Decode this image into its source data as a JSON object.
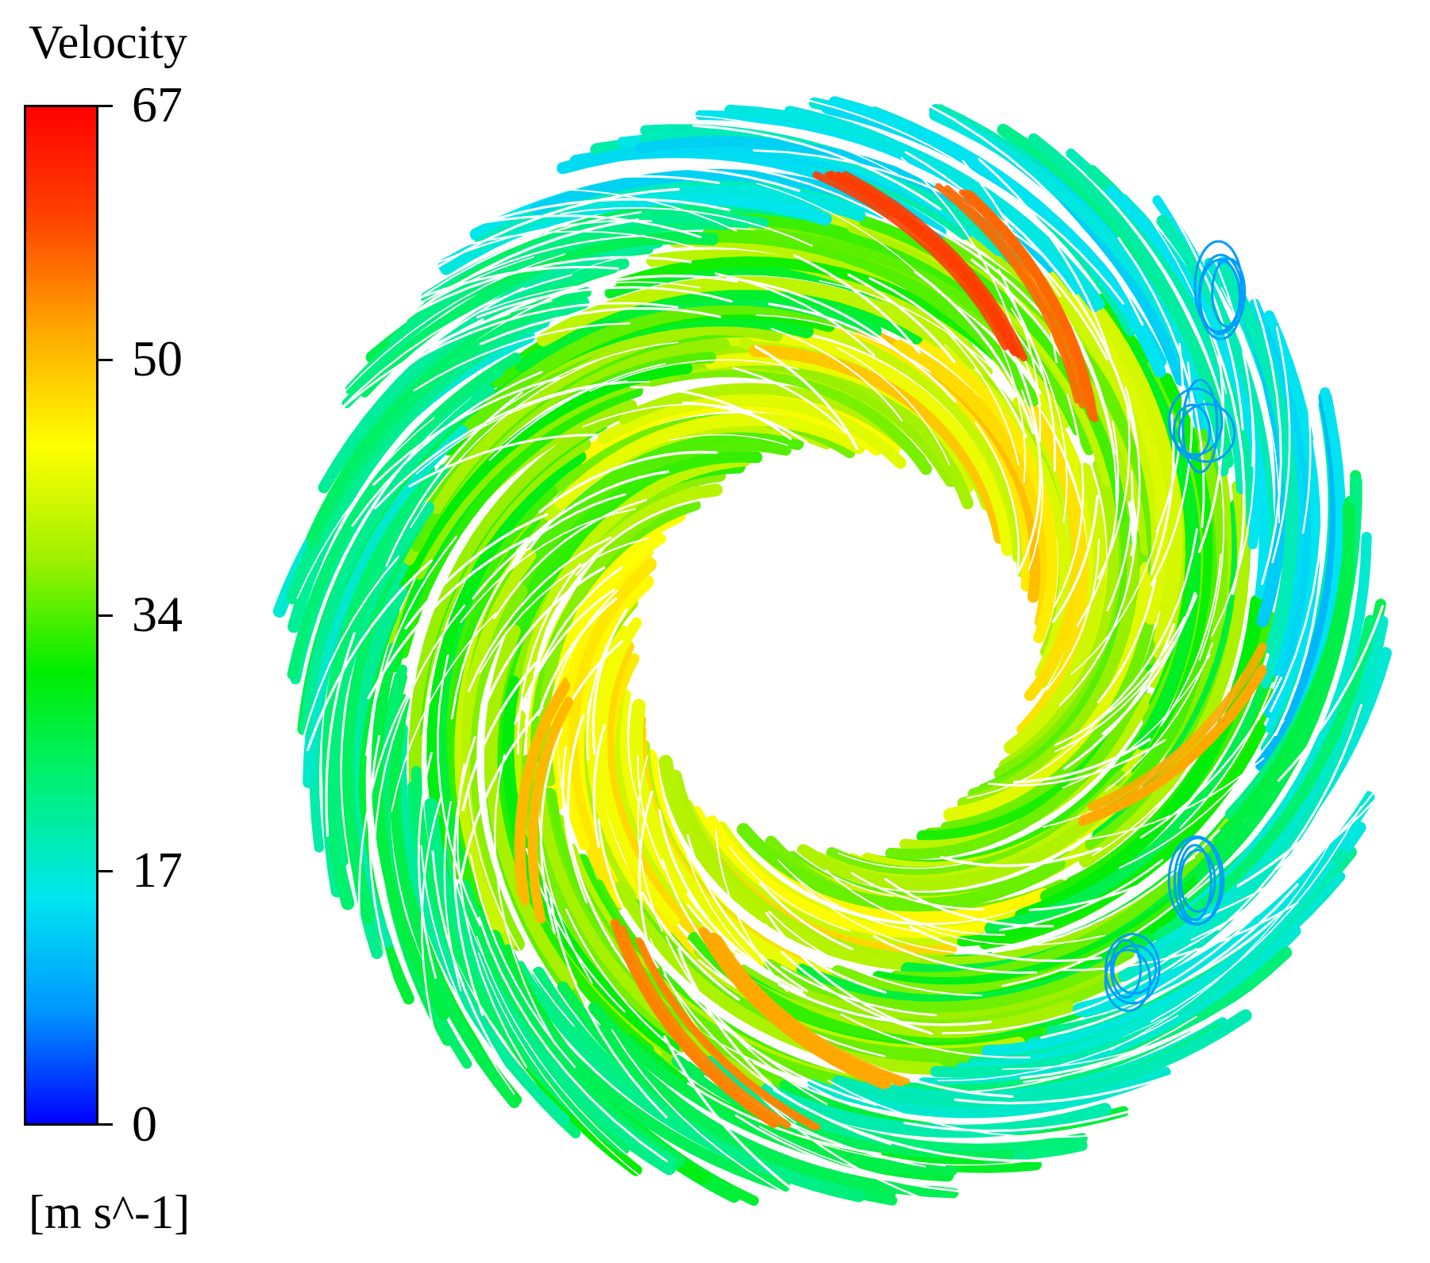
{
  "legend": {
    "title": "Velocity",
    "ticks": [
      "67",
      "50",
      "34",
      "17",
      "0"
    ],
    "unit": "[m s^-1]",
    "colormap": [
      "#0000ff",
      "#0096ff",
      "#00e6f0",
      "#00f07a",
      "#00ee00",
      "#a0f000",
      "#ffff00",
      "#ffaa00",
      "#ff4400",
      "#ff0000"
    ]
  },
  "visual": {
    "description_color_low": "#1f6fff",
    "description_color_high": "#ff2a00",
    "background": "#ffffff"
  }
}
